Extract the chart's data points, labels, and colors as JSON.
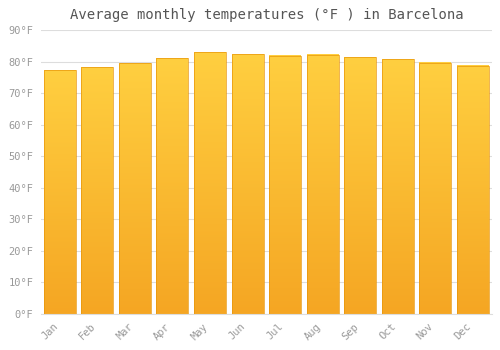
{
  "title": "Average monthly temperatures (°F ) in Barcelona",
  "months": [
    "Jan",
    "Feb",
    "Mar",
    "Apr",
    "May",
    "Jun",
    "Jul",
    "Aug",
    "Sep",
    "Oct",
    "Nov",
    "Dec"
  ],
  "values": [
    77.5,
    78.3,
    79.5,
    81.3,
    83.0,
    82.5,
    82.0,
    82.3,
    81.5,
    81.0,
    79.8,
    78.8
  ],
  "bar_color_top": "#FFCF40",
  "bar_color_bottom": "#F5A623",
  "background_color": "#ffffff",
  "plot_background": "#ffffff",
  "ylim": [
    0,
    90
  ],
  "yticks": [
    0,
    10,
    20,
    30,
    40,
    50,
    60,
    70,
    80,
    90
  ],
  "ytick_labels": [
    "0°F",
    "10°F",
    "20°F",
    "30°F",
    "40°F",
    "50°F",
    "60°F",
    "70°F",
    "80°F",
    "90°F"
  ],
  "grid_color": "#dddddd",
  "title_fontsize": 10,
  "tick_fontsize": 7.5,
  "tick_color": "#999999",
  "font_family": "monospace",
  "bar_width": 0.85
}
